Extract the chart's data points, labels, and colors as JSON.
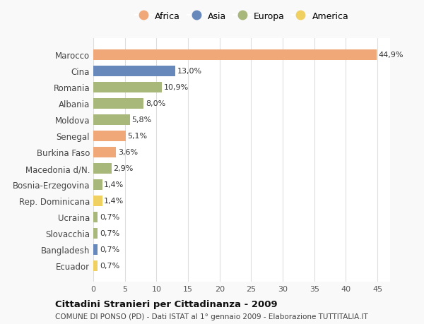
{
  "countries": [
    "Marocco",
    "Cina",
    "Romania",
    "Albania",
    "Moldova",
    "Senegal",
    "Burkina Faso",
    "Macedonia d/N.",
    "Bosnia-Erzegovina",
    "Rep. Dominicana",
    "Ucraina",
    "Slovacchia",
    "Bangladesh",
    "Ecuador"
  ],
  "values": [
    44.9,
    13.0,
    10.9,
    8.0,
    5.8,
    5.1,
    3.6,
    2.9,
    1.4,
    1.4,
    0.7,
    0.7,
    0.7,
    0.7
  ],
  "labels": [
    "44,9%",
    "13,0%",
    "10,9%",
    "8,0%",
    "5,8%",
    "5,1%",
    "3,6%",
    "2,9%",
    "1,4%",
    "1,4%",
    "0,7%",
    "0,7%",
    "0,7%",
    "0,7%"
  ],
  "continents": [
    "Africa",
    "Asia",
    "Europa",
    "Europa",
    "Europa",
    "Africa",
    "Africa",
    "Europa",
    "Europa",
    "America",
    "Europa",
    "Europa",
    "Asia",
    "America"
  ],
  "colors": {
    "Africa": "#F0A878",
    "Asia": "#6688BB",
    "Europa": "#A8B87A",
    "America": "#F0D060"
  },
  "legend_order": [
    "Africa",
    "Asia",
    "Europa",
    "America"
  ],
  "title1": "Cittadini Stranieri per Cittadinanza - 2009",
  "title2": "COMUNE DI PONSO (PD) - Dati ISTAT al 1° gennaio 2009 - Elaborazione TUTTITALIA.IT",
  "xlim": [
    0,
    47
  ],
  "xticks": [
    0,
    5,
    10,
    15,
    20,
    25,
    30,
    35,
    40,
    45
  ],
  "background_color": "#f9f9f9",
  "bar_background_color": "#ffffff",
  "grid_color": "#dddddd",
  "label_fontsize": 8,
  "ytick_fontsize": 8.5,
  "xtick_fontsize": 8
}
